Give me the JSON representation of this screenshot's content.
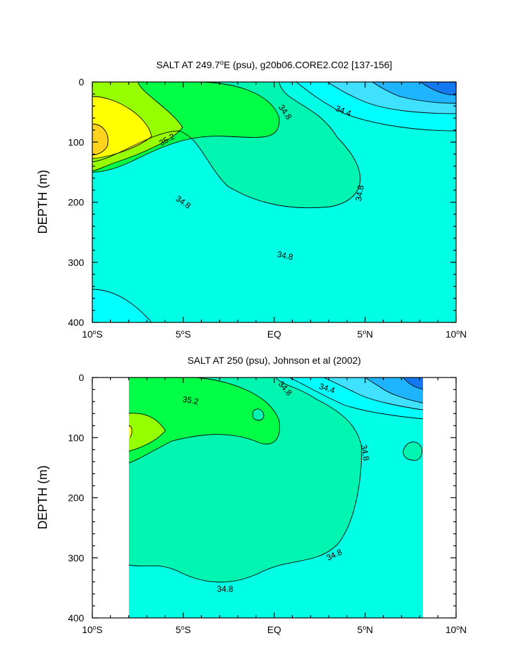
{
  "chart_data": [
    {
      "type": "filled-contour",
      "title_main": "SALT AT 249.7",
      "title_sup": "o",
      "title_rest": "E (psu), g20b06.CORE2.C02 [137-156]",
      "ylabel": "DEPTH (m)",
      "xlim": [
        -10,
        10
      ],
      "ylim": [
        400,
        0
      ],
      "x_ticks": [
        {
          "value": -10,
          "num": "10",
          "dir": "S"
        },
        {
          "value": -5,
          "num": "5",
          "dir": "S"
        },
        {
          "value": 0,
          "num": "EQ",
          "dir": ""
        },
        {
          "value": 5,
          "num": "5",
          "dir": "N"
        },
        {
          "value": 10,
          "num": "10",
          "dir": "N"
        }
      ],
      "y_ticks": [
        {
          "value": 0,
          "label": "0"
        },
        {
          "value": 100,
          "label": "100"
        },
        {
          "value": 200,
          "label": "200"
        },
        {
          "value": 300,
          "label": "300"
        },
        {
          "value": 400,
          "label": "400"
        }
      ],
      "data_extent_x": [
        -10,
        10
      ],
      "contour_labels": [
        {
          "text": "34.8",
          "x": 0.6,
          "y": 50,
          "rot": 55
        },
        {
          "text": "34.4",
          "x": 3.8,
          "y": 48,
          "rot": 22
        },
        {
          "text": "35.2",
          "x": -5.9,
          "y": 96,
          "rot": -30
        },
        {
          "text": "34.8",
          "x": 4.7,
          "y": 185,
          "rot": -80
        },
        {
          "text": "34.8",
          "x": -5.0,
          "y": 200,
          "rot": 35
        },
        {
          "text": "34.8",
          "x": 0.6,
          "y": 289,
          "rot": 12
        }
      ]
    },
    {
      "type": "filled-contour",
      "title_main": "SALT AT 250 (psu), Johnson et al (2002)",
      "title_sup": "",
      "title_rest": "",
      "ylabel": "DEPTH (m)",
      "xlim": [
        -10,
        10
      ],
      "ylim": [
        400,
        0
      ],
      "x_ticks": [
        {
          "value": -10,
          "num": "10",
          "dir": "S"
        },
        {
          "value": -5,
          "num": "5",
          "dir": "S"
        },
        {
          "value": 0,
          "num": "EQ",
          "dir": ""
        },
        {
          "value": 5,
          "num": "5",
          "dir": "N"
        },
        {
          "value": 10,
          "num": "10",
          "dir": "N"
        }
      ],
      "y_ticks": [
        {
          "value": 0,
          "label": "0"
        },
        {
          "value": 100,
          "label": "100"
        },
        {
          "value": 200,
          "label": "200"
        },
        {
          "value": 300,
          "label": "300"
        },
        {
          "value": 400,
          "label": "400"
        }
      ],
      "data_extent_x": [
        -8,
        8.2
      ],
      "contour_labels": [
        {
          "text": "35.2",
          "x": -4.6,
          "y": 38,
          "rot": 10
        },
        {
          "text": "34.8",
          "x": 0.6,
          "y": 18,
          "rot": 50
        },
        {
          "text": "34.4",
          "x": 2.9,
          "y": 18,
          "rot": 18
        },
        {
          "text": "34.8",
          "x": 5.0,
          "y": 125,
          "rot": 80
        },
        {
          "text": "34.8",
          "x": 3.3,
          "y": 295,
          "rot": -25
        },
        {
          "text": "34.8",
          "x": -2.7,
          "y": 352,
          "rot": 0
        }
      ]
    }
  ],
  "colors": {
    "level_cyan_light": "#00ffe4",
    "level_green_mid": "#00f5b0",
    "level_green": "#00ff46",
    "level_lime": "#96ff00",
    "level_yellow": "#ffff00",
    "level_orange": "#ffd21e",
    "level_cyan": "#00ffff",
    "level_sky": "#40e0ff",
    "level_blue_light": "#1eb4ff",
    "level_blue": "#1478f0"
  }
}
